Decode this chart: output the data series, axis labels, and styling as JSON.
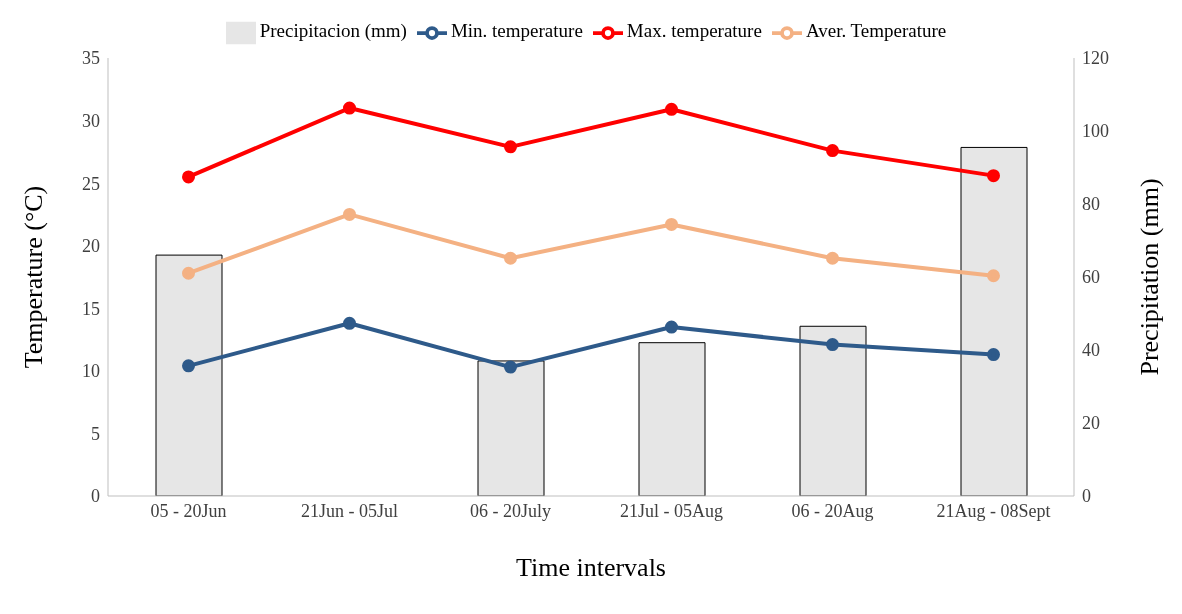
{
  "chart_data": {
    "type": "line",
    "xlabel": "Time intervals",
    "ylabel": "Temperature (°C)",
    "y2label": "Precipitation (mm)",
    "categories": [
      "05 - 20Jun",
      "21Jun - 05Jul",
      "06 - 20July",
      "21Jul - 05Aug",
      "06 - 20Aug",
      "21Aug - 08Sept"
    ],
    "series": [
      {
        "name": "Precipitacion (mm)",
        "type": "bar",
        "axis": "y2",
        "color": "#e6e6e6",
        "values": [
          66,
          0,
          37,
          42,
          46.5,
          95.5
        ]
      },
      {
        "name": "Min. temperature",
        "color": "#2e5a8a",
        "values": [
          10.4,
          13.8,
          10.3,
          13.5,
          12.1,
          11.3
        ]
      },
      {
        "name": "Max. temperature",
        "color": "#ff0000",
        "values": [
          25.5,
          31,
          27.9,
          30.9,
          27.6,
          25.6
        ]
      },
      {
        "name": "Aver. Temperature",
        "color": "#f4b183",
        "values": [
          17.8,
          22.5,
          19,
          21.7,
          19,
          17.6
        ]
      }
    ],
    "ylim": [
      0,
      35
    ],
    "yticks": [
      0,
      5,
      10,
      15,
      20,
      25,
      30,
      35
    ],
    "y2lim": [
      0,
      120
    ],
    "y2ticks": [
      0,
      20,
      40,
      60,
      80,
      100,
      120
    ],
    "marker": "circle",
    "line_style": "solid",
    "grid": false,
    "legend": "top"
  }
}
